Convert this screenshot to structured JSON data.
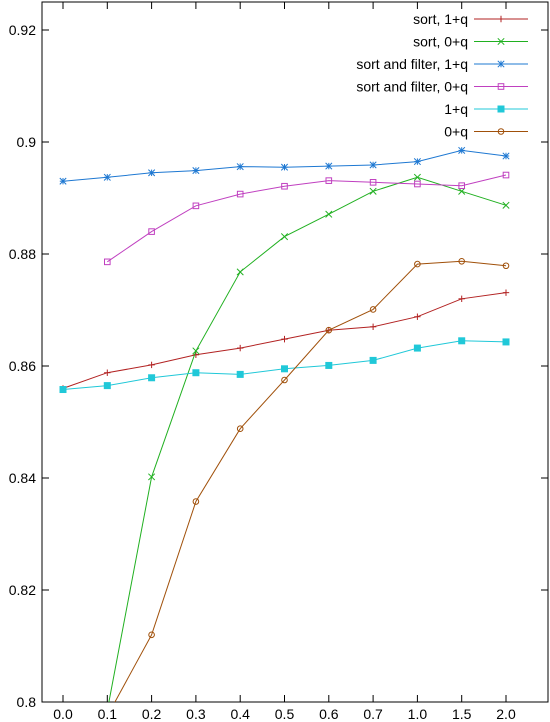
{
  "chart_data": {
    "type": "line",
    "title": "",
    "xlabel": "",
    "ylabel": "",
    "categories": [
      "0.0",
      "0.1",
      "0.2",
      "0.3",
      "0.4",
      "0.5",
      "0.6",
      "0.7",
      "1.0",
      "1.5",
      "2.0"
    ],
    "ylim": [
      0.8,
      0.925
    ],
    "y_ticks": [
      "0.8",
      "0.82",
      "0.84",
      "0.86",
      "0.88",
      "0.9",
      "0.92"
    ],
    "grid": false,
    "legend_position": "top-right",
    "series": [
      {
        "name": "sort, 1+q",
        "color": "#b22222",
        "marker": "plus",
        "values": [
          0.856,
          0.8588,
          0.8602,
          0.862,
          0.8632,
          0.8648,
          0.8664,
          0.867,
          0.8688,
          0.872,
          0.8731
        ]
      },
      {
        "name": "sort, 0+q",
        "color": "#20b020",
        "marker": "x",
        "values": [
          null,
          0.7985,
          0.8402,
          0.8627,
          0.8768,
          0.8831,
          0.8871,
          0.8912,
          0.8937,
          0.8912,
          0.8887
        ]
      },
      {
        "name": "sort and filter, 1+q",
        "color": "#1e78d2",
        "marker": "star",
        "values": [
          0.893,
          0.8937,
          0.8945,
          0.8949,
          0.8956,
          0.8955,
          0.8957,
          0.8959,
          0.8965,
          0.8985,
          0.8975
        ]
      },
      {
        "name": "sort and filter, 0+q",
        "color": "#c040c0",
        "marker": "square-open",
        "values": [
          null,
          0.8786,
          0.884,
          0.8886,
          0.8907,
          0.8921,
          0.8931,
          0.8928,
          0.8925,
          0.8922,
          0.8941
        ]
      },
      {
        "name": "1+q",
        "color": "#20c8d8",
        "marker": "square-filled",
        "values": [
          0.8558,
          0.8565,
          0.8579,
          0.8588,
          0.8585,
          0.8595,
          0.8601,
          0.861,
          0.8632,
          0.8645,
          0.8643
        ]
      },
      {
        "name": "0+q",
        "color": "#a0500a",
        "marker": "circle-open",
        "values": [
          null,
          0.7975,
          0.812,
          0.8358,
          0.8488,
          0.8575,
          0.8664,
          0.8701,
          0.8782,
          0.8787,
          0.8779
        ]
      }
    ]
  }
}
